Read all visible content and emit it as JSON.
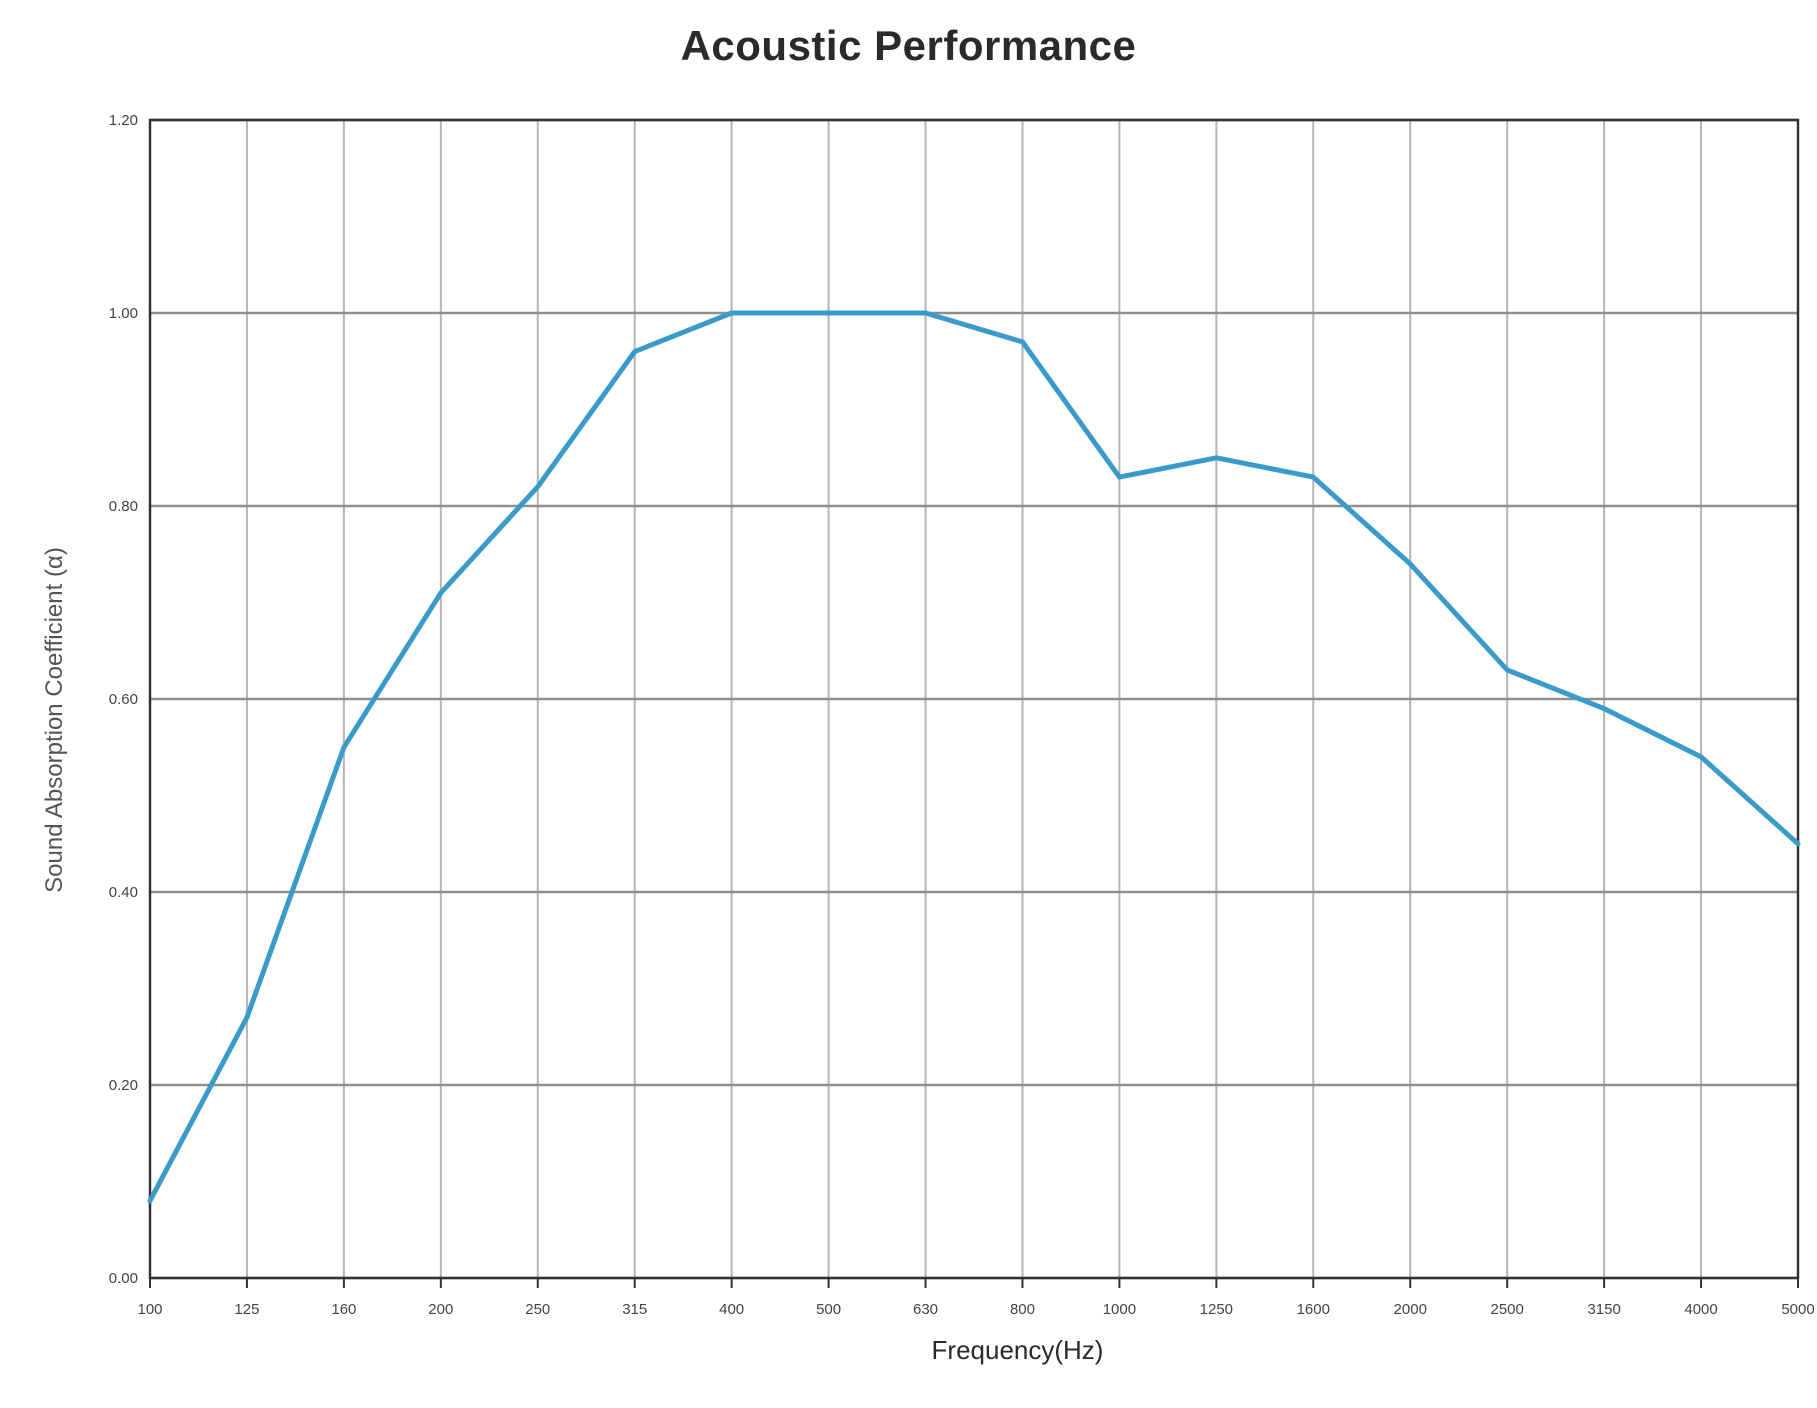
{
  "chart_data": {
    "type": "line",
    "title": "Acoustic Performance",
    "xlabel": "Frequency(Hz)",
    "ylabel": "Sound Absorption Coefficient (α)",
    "x_scale": "log (1/3-octave bands)",
    "x": [
      "100",
      "125",
      "160",
      "200",
      "250",
      "315",
      "400",
      "500",
      "630",
      "800",
      "1000",
      "1250",
      "1600",
      "2000",
      "2500",
      "3150",
      "4000",
      "5000"
    ],
    "y_ticks": [
      "0.00",
      "0.20",
      "0.40",
      "0.60",
      "0.80",
      "1.00",
      "1.20"
    ],
    "ylim": [
      0,
      1.2
    ],
    "grid": true,
    "legend": "none",
    "series": [
      {
        "name": "",
        "color": "#3a9ac9",
        "values": [
          0.08,
          0.27,
          0.55,
          0.71,
          0.82,
          0.96,
          1.0,
          1.0,
          1.0,
          0.97,
          0.83,
          0.85,
          0.83,
          0.74,
          0.63,
          0.59,
          0.54,
          0.45
        ]
      }
    ]
  }
}
